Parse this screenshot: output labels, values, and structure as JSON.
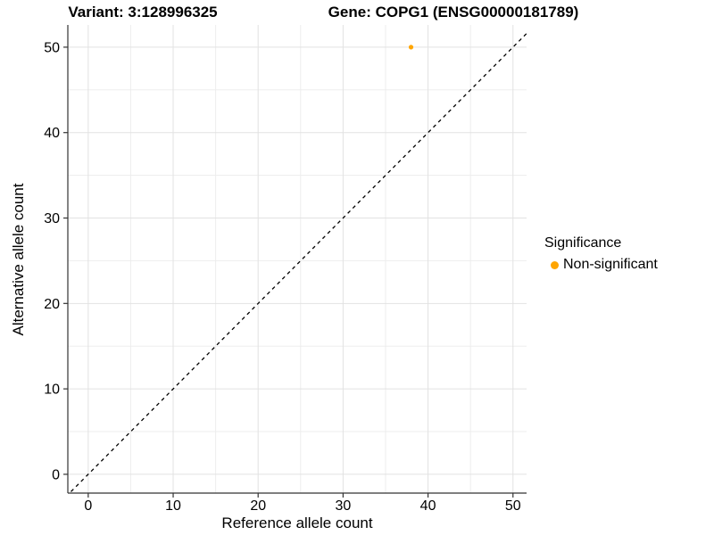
{
  "titles": {
    "left": "Variant: 3:128996325",
    "right": "Gene: COPG1 (ENSG00000181789)"
  },
  "legend": {
    "title": "Significance",
    "items": [
      {
        "label": "Non-significant",
        "color": "#FFA500",
        "marker": "dot-icon"
      }
    ]
  },
  "chart_data": {
    "type": "scatter",
    "title_left": "Variant: 3:128996325",
    "title_right": "Gene: COPG1 (ENSG00000181789)",
    "xlabel": "Reference allele count",
    "ylabel": "Alternative allele count",
    "xlim": [
      -2.4,
      51.6
    ],
    "ylim": [
      -2.2,
      52.6
    ],
    "x_ticks": [
      0,
      10,
      20,
      30,
      40,
      50
    ],
    "y_ticks": [
      0,
      10,
      20,
      30,
      40,
      50
    ],
    "grid": {
      "major_every": 10,
      "minor_every": 5,
      "major_color": "#E2E2E2",
      "minor_color": "#EDEDED"
    },
    "axis_color": "#333333",
    "tick_label_color": "#000000",
    "tick_font_size": 16,
    "reference_line": {
      "type": "identity",
      "slope": 1,
      "intercept": 0,
      "style": "dashed",
      "color": "#000000"
    },
    "series": [
      {
        "name": "Non-significant",
        "color": "#FFA500",
        "point_radius": 2.6,
        "points": [
          {
            "x": 38,
            "y": 50
          }
        ]
      }
    ],
    "legend_position": "right",
    "legend_title": "Significance"
  }
}
